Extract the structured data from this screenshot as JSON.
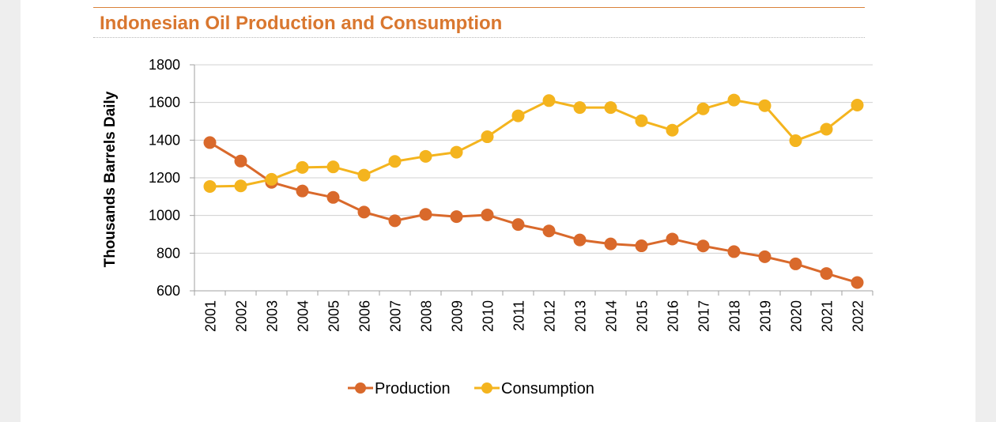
{
  "chart_data": {
    "type": "line",
    "title": "Indonesian Oil Production and Consumption",
    "ylabel": "Thousands Barrels Daily",
    "xlabel": "",
    "ylim": [
      600,
      1800
    ],
    "yticks": [
      600,
      800,
      1000,
      1200,
      1400,
      1600,
      1800
    ],
    "grid": true,
    "legend_position": "bottom",
    "x": [
      "2001",
      "2002",
      "2003",
      "2004",
      "2005",
      "2006",
      "2007",
      "2008",
      "2009",
      "2010",
      "2011",
      "2012",
      "2013",
      "2014",
      "2015",
      "2016",
      "2017",
      "2018",
      "2019",
      "2020",
      "2021",
      "2022"
    ],
    "series": [
      {
        "name": "Production",
        "color": "#d9692b",
        "values": [
          1387,
          1289,
          1176,
          1130,
          1096,
          1018,
          972,
          1006,
          994,
          1003,
          952,
          918,
          870,
          849,
          839,
          875,
          838,
          808,
          781,
          743,
          692,
          644
        ]
      },
      {
        "name": "Consumption",
        "color": "#f4b41e",
        "values": [
          1154,
          1157,
          1192,
          1255,
          1258,
          1214,
          1287,
          1314,
          1336,
          1418,
          1529,
          1610,
          1573,
          1573,
          1503,
          1453,
          1566,
          1613,
          1583,
          1397,
          1458,
          1586
        ]
      }
    ]
  }
}
